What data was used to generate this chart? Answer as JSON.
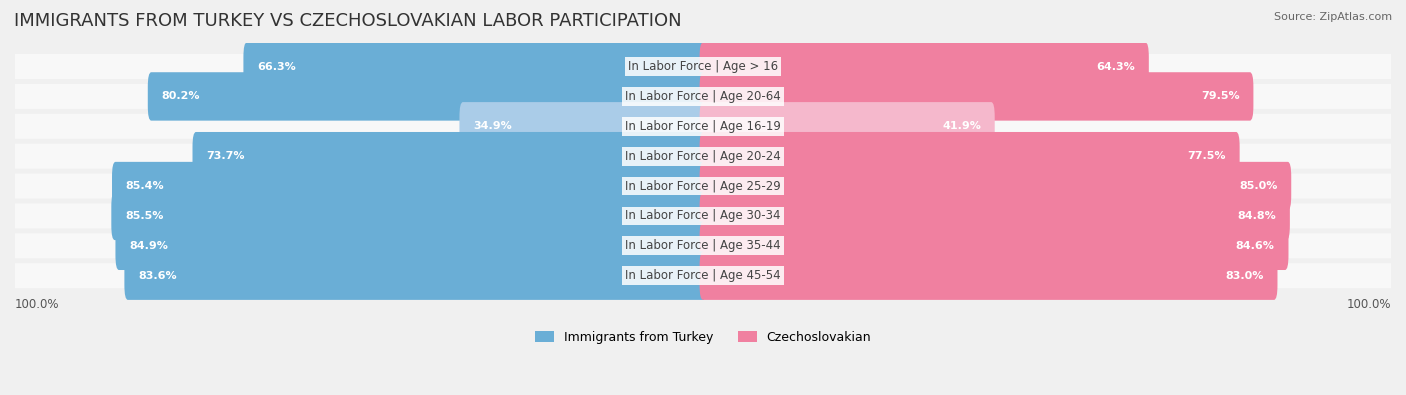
{
  "title": "IMMIGRANTS FROM TURKEY VS CZECHOSLOVAKIAN LABOR PARTICIPATION",
  "source": "Source: ZipAtlas.com",
  "categories": [
    "In Labor Force | Age > 16",
    "In Labor Force | Age 20-64",
    "In Labor Force | Age 16-19",
    "In Labor Force | Age 20-24",
    "In Labor Force | Age 25-29",
    "In Labor Force | Age 30-34",
    "In Labor Force | Age 35-44",
    "In Labor Force | Age 45-54"
  ],
  "turkey_values": [
    66.3,
    80.2,
    34.9,
    73.7,
    85.4,
    85.5,
    84.9,
    83.6
  ],
  "czech_values": [
    64.3,
    79.5,
    41.9,
    77.5,
    85.0,
    84.8,
    84.6,
    83.0
  ],
  "turkey_color_full": "#6aaed6",
  "turkey_color_light": "#aacce8",
  "czech_color_full": "#f080a0",
  "czech_color_light": "#f5b8cc",
  "background_color": "#f0f0f0",
  "bar_bg_color": "#e8e8e8",
  "row_bg_color": "#f8f8f8",
  "max_value": 100.0,
  "bar_height": 0.62,
  "title_fontsize": 13,
  "label_fontsize": 8.5,
  "value_fontsize": 8,
  "legend_fontsize": 9,
  "source_fontsize": 8
}
